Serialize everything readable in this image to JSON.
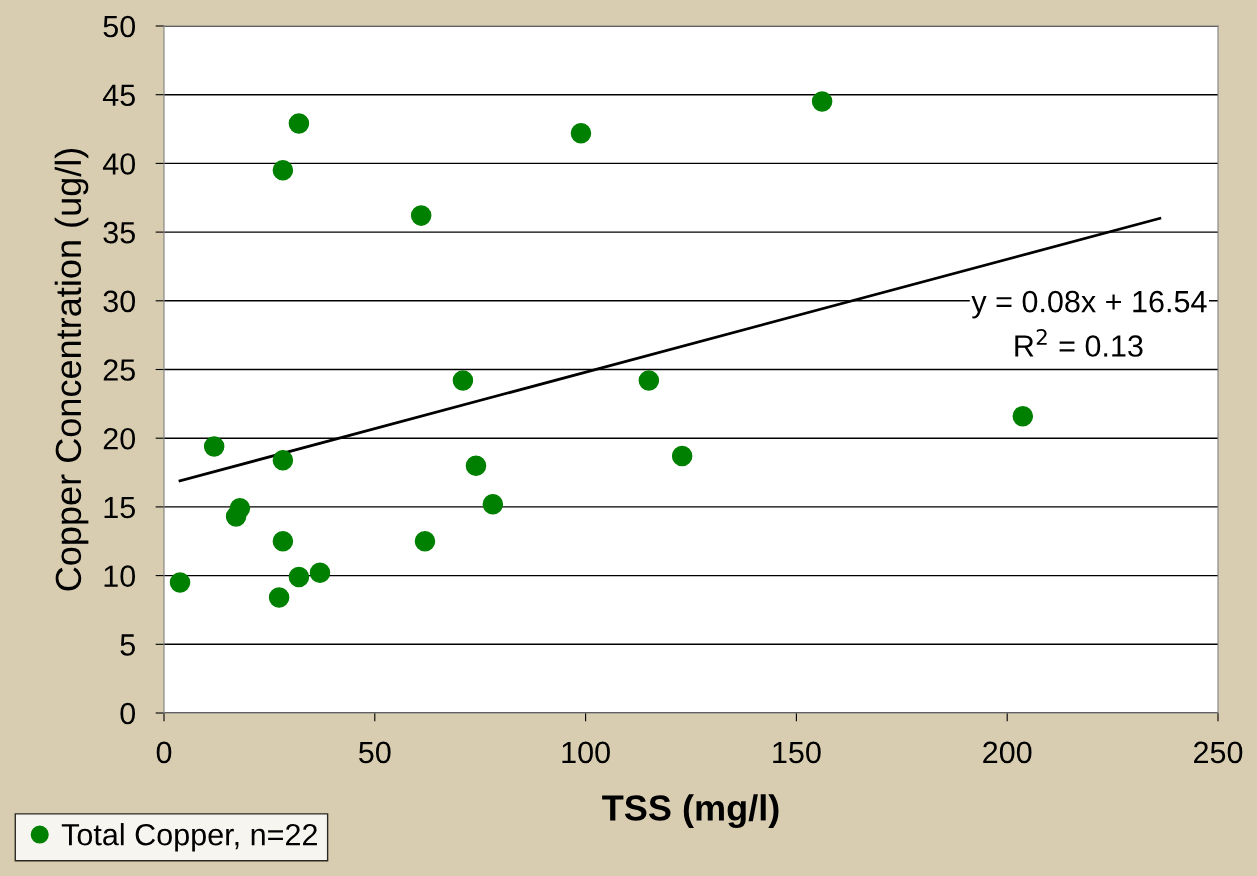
{
  "chart_data": {
    "type": "scatter",
    "xlabel": "TSS (mg/l)",
    "ylabel": "Copper Concentration (ug/l)",
    "xlim": [
      0,
      250
    ],
    "xticks": [
      0,
      50,
      100,
      150,
      200,
      250
    ],
    "ylim": [
      0,
      50
    ],
    "yticks": [
      0,
      5,
      10,
      15,
      20,
      25,
      30,
      35,
      40,
      45,
      50
    ],
    "grid": "y",
    "legend": "bottom left",
    "series": [
      {
        "name": "Total Copper, n=22",
        "marker": "circle",
        "color": "#008000",
        "x": [
          3.8,
          11.9,
          17.1,
          18.0,
          27.3,
          28.2,
          28.2,
          28.2,
          32.0,
          32.0,
          37.0,
          61.0,
          61.9,
          70.9,
          74.0,
          78.0,
          98.9,
          115.0,
          122.9,
          156.1,
          203.7
        ],
        "values": [
          9.5,
          19.4,
          14.3,
          14.9,
          8.4,
          39.5,
          18.4,
          12.5,
          42.9,
          9.9,
          10.2,
          36.2,
          12.5,
          24.2,
          18.0,
          15.2,
          42.2,
          24.2,
          18.7,
          44.5,
          21.6
        ]
      },
      {
        "type": "line",
        "marker": "none",
        "color": "#000000",
        "x": [
          3.8,
          236.2
        ],
        "values": [
          16.9,
          36.0
        ]
      }
    ],
    "annotations": [
      "y = 0.08x + 16.54",
      "R$^{2}$ = 0.13"
    ]
  }
}
